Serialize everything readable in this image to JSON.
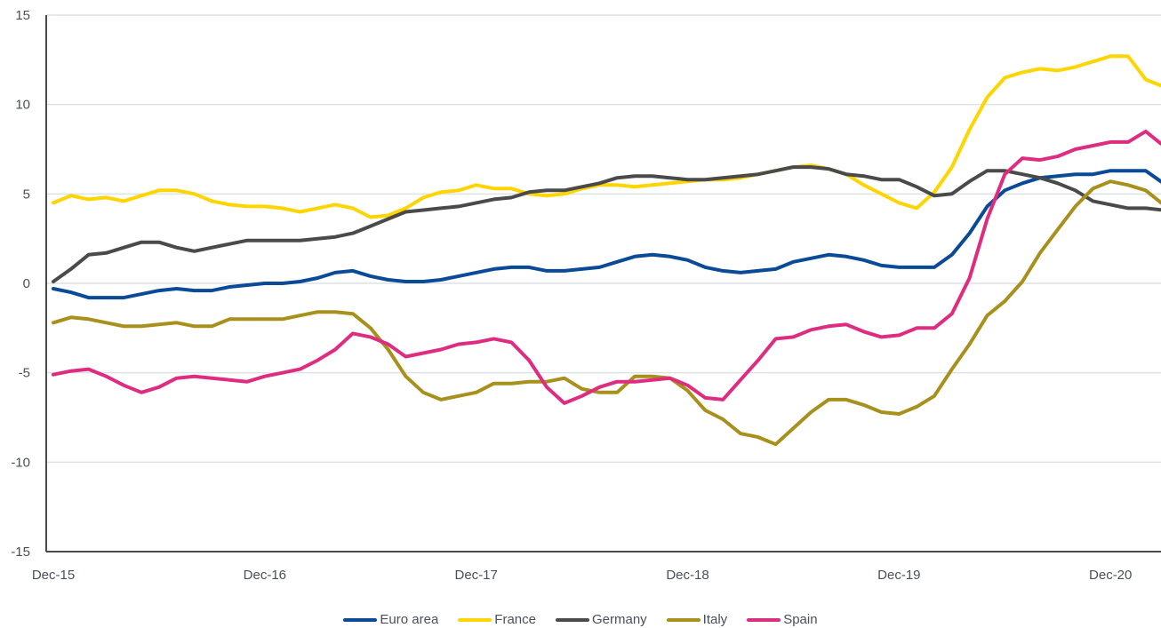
{
  "chart_data": {
    "type": "line",
    "title": "",
    "xlabel": "",
    "ylabel": "",
    "ylim": [
      -15,
      15
    ],
    "yticks": [
      -15,
      -10,
      -5,
      0,
      5,
      10,
      15
    ],
    "ytick_labels": [
      "-15",
      "-10",
      "-5",
      "0",
      "5",
      "10",
      "15"
    ],
    "xtick_labels": [
      "Dec-15",
      "Dec-16",
      "Dec-17",
      "Dec-18",
      "Dec-19",
      "Dec-20"
    ],
    "xtick_positions": [
      0,
      12,
      24,
      36,
      48,
      60
    ],
    "grid": true,
    "legend_position": "bottom",
    "x_count": 64,
    "series": [
      {
        "name": "Euro area",
        "color": "#0a4a97",
        "values": [
          -0.3,
          -0.5,
          -0.8,
          -0.8,
          -0.8,
          -0.6,
          -0.4,
          -0.3,
          -0.4,
          -0.4,
          -0.2,
          -0.1,
          0,
          0,
          0.1,
          0.3,
          0.6,
          0.7,
          0.4,
          0.2,
          0.1,
          0.1,
          0.2,
          0.4,
          0.6,
          0.8,
          0.9,
          0.9,
          0.7,
          0.7,
          0.8,
          0.9,
          1.2,
          1.5,
          1.6,
          1.5,
          1.3,
          0.9,
          0.7,
          0.6,
          0.7,
          0.8,
          1.2,
          1.4,
          1.6,
          1.5,
          1.3,
          1.0,
          0.9,
          0.9,
          0.9,
          1.6,
          2.8,
          4.3,
          5.2,
          5.6,
          5.9,
          6.0,
          6.1,
          6.1,
          6.3,
          6.3,
          6.3,
          5.6
        ]
      },
      {
        "name": "France",
        "color": "#ffd500",
        "values": [
          4.5,
          4.9,
          4.7,
          4.8,
          4.6,
          4.9,
          5.2,
          5.2,
          5.0,
          4.6,
          4.4,
          4.3,
          4.3,
          4.2,
          4.0,
          4.2,
          4.4,
          4.2,
          3.7,
          3.8,
          4.2,
          4.8,
          5.1,
          5.2,
          5.5,
          5.3,
          5.3,
          5.0,
          4.9,
          5.0,
          5.3,
          5.5,
          5.5,
          5.4,
          5.5,
          5.6,
          5.7,
          5.8,
          5.8,
          5.9,
          6.1,
          6.3,
          6.5,
          6.6,
          6.4,
          6.1,
          5.5,
          5.0,
          4.5,
          4.2,
          5.1,
          6.5,
          8.6,
          10.4,
          11.5,
          11.8,
          12.0,
          11.9,
          12.1,
          12.4,
          12.7,
          12.7,
          11.4,
          11.0
        ]
      },
      {
        "name": "Germany",
        "color": "#4a4a4a",
        "values": [
          0.1,
          0.8,
          1.6,
          1.7,
          2.0,
          2.3,
          2.3,
          2.0,
          1.8,
          2.0,
          2.2,
          2.4,
          2.4,
          2.4,
          2.4,
          2.5,
          2.6,
          2.8,
          3.2,
          3.6,
          4.0,
          4.1,
          4.2,
          4.3,
          4.5,
          4.7,
          4.8,
          5.1,
          5.2,
          5.2,
          5.4,
          5.6,
          5.9,
          6.0,
          6.0,
          5.9,
          5.8,
          5.8,
          5.9,
          6.0,
          6.1,
          6.3,
          6.5,
          6.5,
          6.4,
          6.1,
          6.0,
          5.8,
          5.8,
          5.4,
          4.9,
          5.0,
          5.7,
          6.3,
          6.3,
          6.1,
          5.9,
          5.6,
          5.2,
          4.6,
          4.4,
          4.2,
          4.2,
          4.1
        ]
      },
      {
        "name": "Italy",
        "color": "#a8901c",
        "values": [
          -2.2,
          -1.9,
          -2.0,
          -2.2,
          -2.4,
          -2.4,
          -2.3,
          -2.2,
          -2.4,
          -2.4,
          -2.0,
          -2.0,
          -2.0,
          -2.0,
          -1.8,
          -1.6,
          -1.6,
          -1.7,
          -2.5,
          -3.7,
          -5.2,
          -6.1,
          -6.5,
          -6.3,
          -6.1,
          -5.6,
          -5.6,
          -5.5,
          -5.5,
          -5.3,
          -5.9,
          -6.1,
          -6.1,
          -5.2,
          -5.2,
          -5.3,
          -6.0,
          -7.1,
          -7.6,
          -8.4,
          -8.6,
          -9.0,
          -8.1,
          -7.2,
          -6.5,
          -6.5,
          -6.8,
          -7.2,
          -7.3,
          -6.9,
          -6.3,
          -4.8,
          -3.4,
          -1.8,
          -1.0,
          0.1,
          1.7,
          3.0,
          4.3,
          5.3,
          5.7,
          5.5,
          5.2,
          4.4
        ]
      },
      {
        "name": "Spain",
        "color": "#de2d80",
        "values": [
          -5.1,
          -4.9,
          -4.8,
          -5.2,
          -5.7,
          -6.1,
          -5.8,
          -5.3,
          -5.2,
          -5.3,
          -5.4,
          -5.5,
          -5.2,
          -5.0,
          -4.8,
          -4.3,
          -3.7,
          -2.8,
          -3.0,
          -3.4,
          -4.1,
          -3.9,
          -3.7,
          -3.4,
          -3.3,
          -3.1,
          -3.3,
          -4.3,
          -5.8,
          -6.7,
          -6.3,
          -5.8,
          -5.5,
          -5.5,
          -5.4,
          -5.3,
          -5.7,
          -6.4,
          -6.5,
          -5.4,
          -4.3,
          -3.1,
          -3.0,
          -2.6,
          -2.4,
          -2.3,
          -2.7,
          -3.0,
          -2.9,
          -2.5,
          -2.5,
          -1.7,
          0.3,
          3.6,
          6.1,
          7.0,
          6.9,
          7.1,
          7.5,
          7.7,
          7.9,
          7.9,
          8.5,
          7.7
        ]
      }
    ]
  },
  "colors": {
    "grid": "#dfe1e5",
    "axis": "#4a4a4a",
    "tick_text": "#4a4f5c"
  }
}
